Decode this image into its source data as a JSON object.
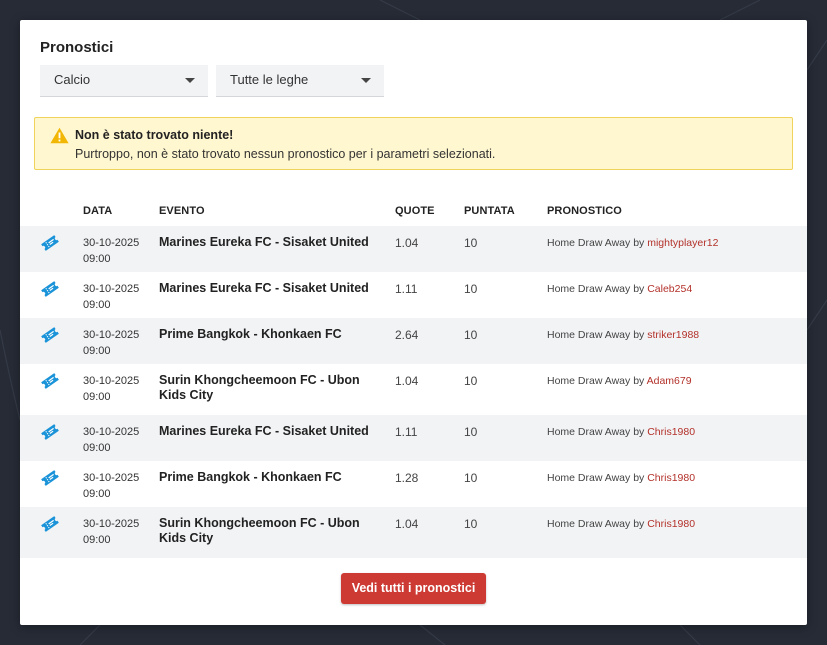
{
  "title": "Pronostici",
  "filters": {
    "sport": "Calcio",
    "league": "Tutte le leghe"
  },
  "alert": {
    "title": "Non è stato trovato niente!",
    "message": "Purtroppo, non è stato trovato nessun pronostico per i parametri selezionati."
  },
  "table": {
    "headers": {
      "date": "DATA",
      "event": "EVENTO",
      "quote": "QUOTE",
      "stake": "PUNTATA",
      "prediction": "PRONOSTICO"
    },
    "rows": [
      {
        "date": "30-10-2025",
        "time": "09:00",
        "event": "Marines Eureka FC - Sisaket United",
        "quote": "1.04",
        "stake": "10",
        "prediction": "Home Draw Away",
        "by": "by",
        "user": "mightyplayer12"
      },
      {
        "date": "30-10-2025",
        "time": "09:00",
        "event": "Marines Eureka FC - Sisaket United",
        "quote": "1.11",
        "stake": "10",
        "prediction": "Home Draw Away",
        "by": "by",
        "user": "Caleb254"
      },
      {
        "date": "30-10-2025",
        "time": "09:00",
        "event": "Prime Bangkok - Khonkaen FC",
        "quote": "2.64",
        "stake": "10",
        "prediction": "Home Draw Away",
        "by": "by",
        "user": "striker1988"
      },
      {
        "date": "30-10-2025",
        "time": "09:00",
        "event": "Surin Khongcheemoon FC - Ubon Kids City",
        "quote": "1.04",
        "stake": "10",
        "prediction": "Home Draw Away",
        "by": "by",
        "user": "Adam679"
      },
      {
        "date": "30-10-2025",
        "time": "09:00",
        "event": "Marines Eureka FC - Sisaket United",
        "quote": "1.11",
        "stake": "10",
        "prediction": "Home Draw Away",
        "by": "by",
        "user": "Chris1980"
      },
      {
        "date": "30-10-2025",
        "time": "09:00",
        "event": "Prime Bangkok - Khonkaen FC",
        "quote": "1.28",
        "stake": "10",
        "prediction": "Home Draw Away",
        "by": "by",
        "user": "Chris1980"
      },
      {
        "date": "30-10-2025",
        "time": "09:00",
        "event": "Surin Khongcheemoon FC - Ubon Kids City",
        "quote": "1.04",
        "stake": "10",
        "prediction": "Home Draw Away",
        "by": "by",
        "user": "Chris1980"
      }
    ]
  },
  "button": {
    "label": "Vedi tutti i pronostici"
  },
  "colors": {
    "accent": "#cd3a33",
    "ticket_icon": "#1b93d8",
    "user_link": "#b3312a",
    "alert_bg": "#fff7cf",
    "alert_icon": "#f2b705"
  },
  "icons": {
    "alert": "warning-triangle-icon",
    "row": "ticket-icon",
    "select": "caret-down-icon"
  }
}
